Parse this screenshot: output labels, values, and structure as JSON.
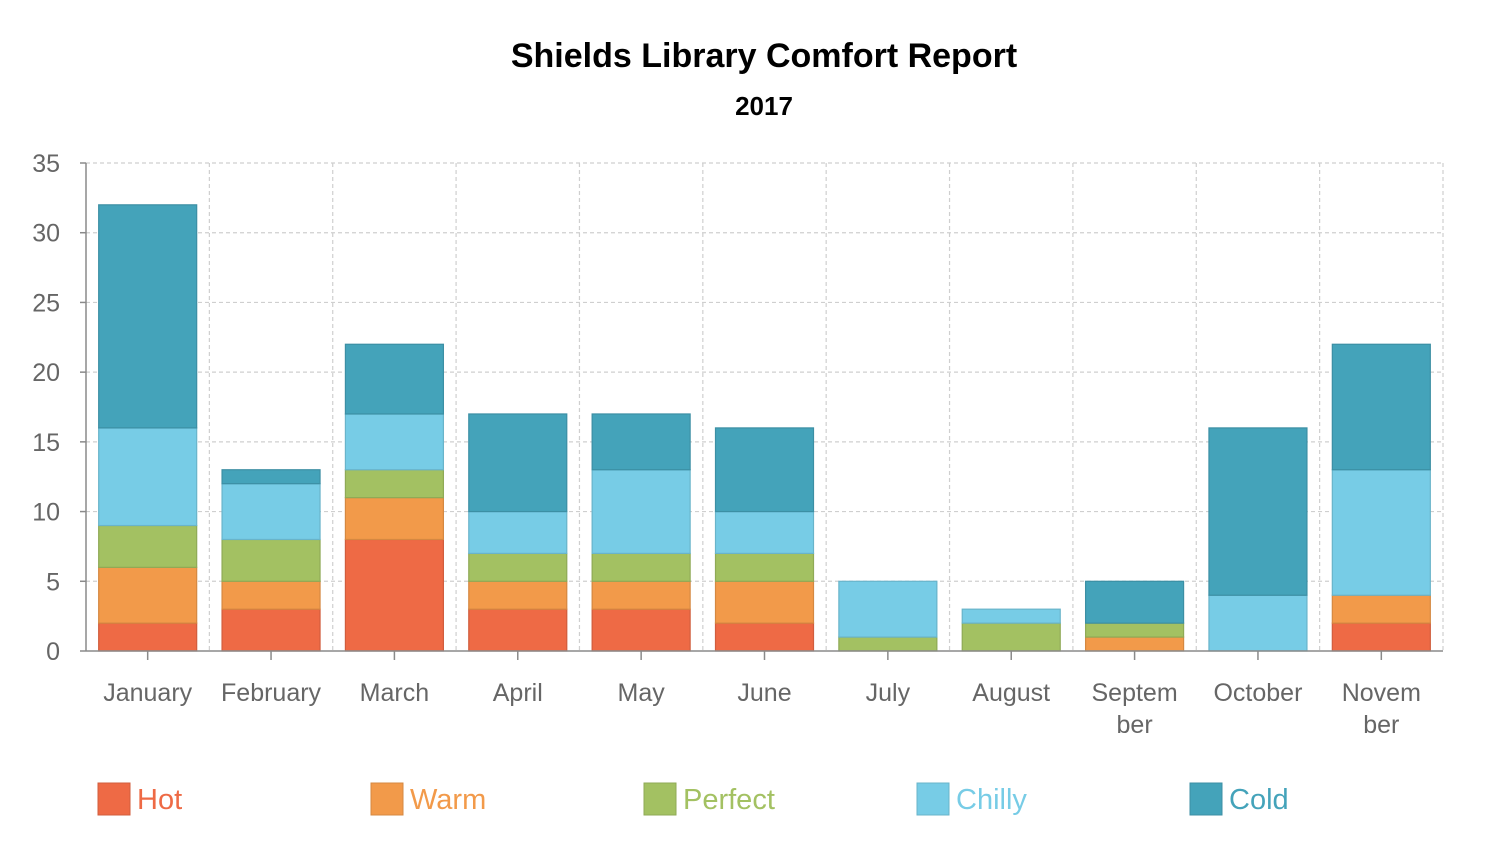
{
  "chart_data": {
    "type": "bar",
    "stacked": true,
    "title": "Shields Library Comfort Report",
    "subtitle": "2017",
    "xlabel": "",
    "ylabel": "",
    "ylim": [
      0,
      35
    ],
    "yticks": [
      0,
      5,
      10,
      15,
      20,
      25,
      30,
      35
    ],
    "grid": true,
    "legend_position": "bottom",
    "categories": [
      "January",
      "February",
      "March",
      "April",
      "May",
      "June",
      "July",
      "August",
      "September",
      "October",
      "November"
    ],
    "category_label_lines": [
      [
        "January"
      ],
      [
        "February"
      ],
      [
        "March"
      ],
      [
        "April"
      ],
      [
        "May"
      ],
      [
        "June"
      ],
      [
        "July"
      ],
      [
        "August"
      ],
      [
        "Septem",
        "ber"
      ],
      [
        "October"
      ],
      [
        "Novem",
        "ber"
      ]
    ],
    "series": [
      {
        "name": "Hot",
        "color": "#ee6a45",
        "values": [
          2,
          3,
          8,
          3,
          3,
          2,
          0,
          0,
          0,
          0,
          2
        ]
      },
      {
        "name": "Warm",
        "color": "#f29a4a",
        "values": [
          4,
          2,
          3,
          2,
          2,
          3,
          0,
          0,
          1,
          0,
          2
        ]
      },
      {
        "name": "Perfect",
        "color": "#a3c162",
        "values": [
          3,
          3,
          2,
          2,
          2,
          2,
          1,
          2,
          1,
          0,
          0
        ]
      },
      {
        "name": "Chilly",
        "color": "#77cce6",
        "values": [
          7,
          4,
          4,
          3,
          6,
          3,
          4,
          1,
          0,
          4,
          9
        ]
      },
      {
        "name": "Cold",
        "color": "#44a3ba",
        "values": [
          16,
          1,
          5,
          7,
          4,
          6,
          0,
          0,
          3,
          12,
          9
        ]
      }
    ]
  }
}
